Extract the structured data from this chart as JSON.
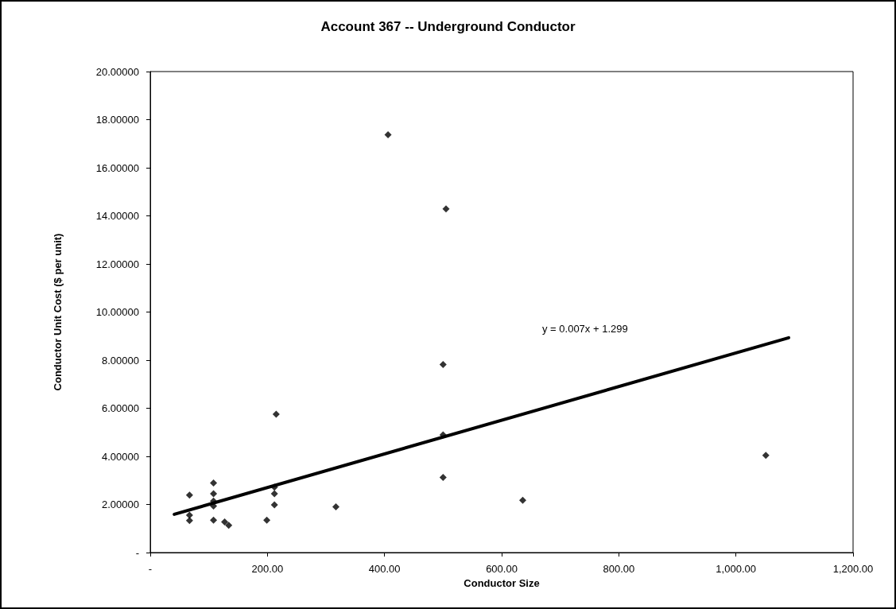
{
  "chart_data": {
    "type": "scatter",
    "title": "Account 367 -- Underground Conductor",
    "xlabel": "Conductor Size",
    "ylabel": "Conductor Unit Cost ($ per unit)",
    "marker": "diamond",
    "grid": false,
    "xlim": [
      0,
      1200
    ],
    "xticks": [
      {
        "value": 0,
        "label": "-"
      },
      {
        "value": 200,
        "label": "200.00"
      },
      {
        "value": 400,
        "label": "400.00"
      },
      {
        "value": 600,
        "label": "600.00"
      },
      {
        "value": 800,
        "label": "800.00"
      },
      {
        "value": 1000,
        "label": "1,000.00"
      },
      {
        "value": 1200,
        "label": "1,200.00"
      }
    ],
    "ylim": [
      0,
      20
    ],
    "yticks": [
      {
        "value": 0,
        "label": "-"
      },
      {
        "value": 2,
        "label": "2.00000"
      },
      {
        "value": 4,
        "label": "4.00000"
      },
      {
        "value": 6,
        "label": "6.00000"
      },
      {
        "value": 8,
        "label": "8.00000"
      },
      {
        "value": 10,
        "label": "10.00000"
      },
      {
        "value": 12,
        "label": "12.00000"
      },
      {
        "value": 14,
        "label": "14.00000"
      },
      {
        "value": 16,
        "label": "16.00000"
      },
      {
        "value": 18,
        "label": "18.00000"
      },
      {
        "value": 20,
        "label": "20.00000"
      }
    ],
    "annotations": [
      "y = 0.007x + 1.299"
    ],
    "series": [
      {
        "color": "#000000",
        "x": [
          67,
          67,
          67,
          108,
          108,
          108,
          108,
          108,
          127,
          134,
          199,
          212,
          212,
          212,
          215,
          317,
          406,
          505,
          500,
          500,
          500,
          636,
          1051
        ],
        "values": [
          2.39,
          1.55,
          1.33,
          2.89,
          2.45,
          2.14,
          1.93,
          1.35,
          1.27,
          1.13,
          1.35,
          2.72,
          2.45,
          1.98,
          5.75,
          1.9,
          17.37,
          14.29,
          7.82,
          4.89,
          3.12,
          2.17,
          4.04
        ]
      },
      {
        "type": "line",
        "color": "#000000",
        "marker": "none",
        "x": [
          41,
          1090
        ],
        "values": [
          1.59,
          8.93
        ]
      }
    ]
  }
}
